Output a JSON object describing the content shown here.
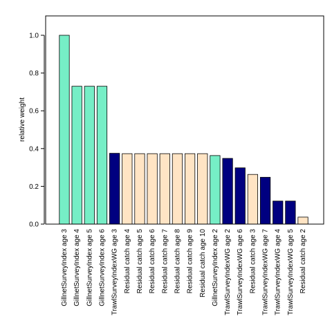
{
  "chart_data": {
    "type": "bar",
    "title": "",
    "xlabel": "",
    "ylabel": "relative weight",
    "ylim": [
      0,
      1.1
    ],
    "yticks": [
      "0.0",
      "0.2",
      "0.4",
      "0.6",
      "0.8",
      "1.0"
    ],
    "grid": false,
    "legend": "none",
    "categories": [
      "GillnetSurveyIndex age 3",
      "GillnetSurveyIndex age 4",
      "GillnetSurveyIndex age 5",
      "GillnetSurveyIndex age 6",
      "TrawlSurveyIndexWG age 3",
      "Residual catch age 4",
      "Residual catch age 5",
      "Residual catch age 6",
      "Residual catch age 7",
      "Residual catch age 8",
      "Residual catch age 9",
      "Residual catch age 10",
      "GillnetSurveyIndex age 2",
      "TrawlSurveyIndexWG age 2",
      "TrawlSurveyIndexWG age 6",
      "Residual catch age 3",
      "TrawlSurveyIndexWG age 7",
      "TrawlSurveyIndexWG age 4",
      "TrawlSurveyIndexWG age 5",
      "Residual catch age 2"
    ],
    "values": [
      1.0,
      0.73,
      0.73,
      0.73,
      0.375,
      0.373,
      0.373,
      0.373,
      0.373,
      0.373,
      0.373,
      0.373,
      0.363,
      0.348,
      0.298,
      0.263,
      0.248,
      0.122,
      0.122,
      0.037
    ],
    "colors": {
      "GillnetSurveyIndex": "#76EEC6",
      "TrawlSurveyIndexWG": "#000080",
      "Residual catch": "#FFE4C4"
    },
    "bar_colors": [
      "#76EEC6",
      "#76EEC6",
      "#76EEC6",
      "#76EEC6",
      "#000080",
      "#FFE4C4",
      "#FFE4C4",
      "#FFE4C4",
      "#FFE4C4",
      "#FFE4C4",
      "#FFE4C4",
      "#FFE4C4",
      "#76EEC6",
      "#000080",
      "#000080",
      "#FFE4C4",
      "#000080",
      "#000080",
      "#000080",
      "#FFE4C4"
    ]
  }
}
